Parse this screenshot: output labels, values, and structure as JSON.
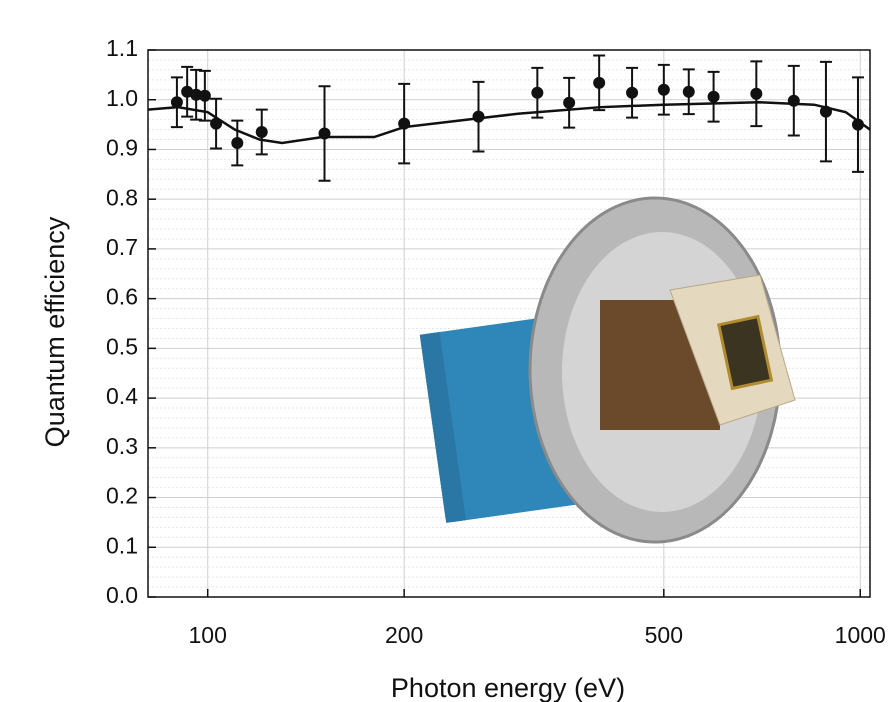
{
  "chart_data": {
    "type": "scatter",
    "x_label": "Photon energy (eV)",
    "y_label": "Quantum efficiency",
    "xscale": "log",
    "grid": true,
    "color": "#111111",
    "xlim": [
      81,
      1035
    ],
    "ylim": [
      0,
      1.1
    ],
    "xticks": [
      100,
      200,
      500,
      1000
    ],
    "yticks": [
      {
        "value": 0,
        "label": "0.0"
      },
      0.1,
      0.2,
      0.3,
      0.4,
      0.5,
      0.6,
      0.7,
      0.8,
      0.9,
      {
        "value": 1,
        "label": "1.0"
      },
      1.1
    ],
    "series": [
      {
        "style": "points",
        "x": [
          89.7,
          93,
          96,
          99,
          103,
          111,
          121,
          151,
          200,
          260,
          320,
          358,
          398,
          447,
          500,
          546,
          596,
          693,
          791,
          886,
          992
        ],
        "values": [
          0.995,
          1.016,
          1.01,
          1.008,
          0.952,
          0.913,
          0.935,
          0.932,
          0.952,
          0.966,
          1.014,
          0.994,
          1.034,
          1.014,
          1.02,
          1.016,
          1.006,
          1.012,
          0.998,
          0.976,
          0.95
        ],
        "errors": [
          0.05,
          0.05,
          0.05,
          0.05,
          0.05,
          0.045,
          0.045,
          0.095,
          0.08,
          0.07,
          0.05,
          0.05,
          0.055,
          0.05,
          0.05,
          0.045,
          0.05,
          0.065,
          0.07,
          0.1,
          0.095
        ]
      },
      {
        "style": "line",
        "x": [
          81,
          90,
          100,
          110,
          120,
          130,
          150,
          180,
          200,
          250,
          300,
          400,
          500,
          700,
          850,
          950,
          1035
        ],
        "values": [
          0.98,
          0.985,
          0.975,
          0.94,
          0.92,
          0.913,
          0.925,
          0.925,
          0.945,
          0.96,
          0.972,
          0.985,
          0.99,
          0.995,
          0.99,
          0.975,
          0.94
        ]
      }
    ]
  }
}
